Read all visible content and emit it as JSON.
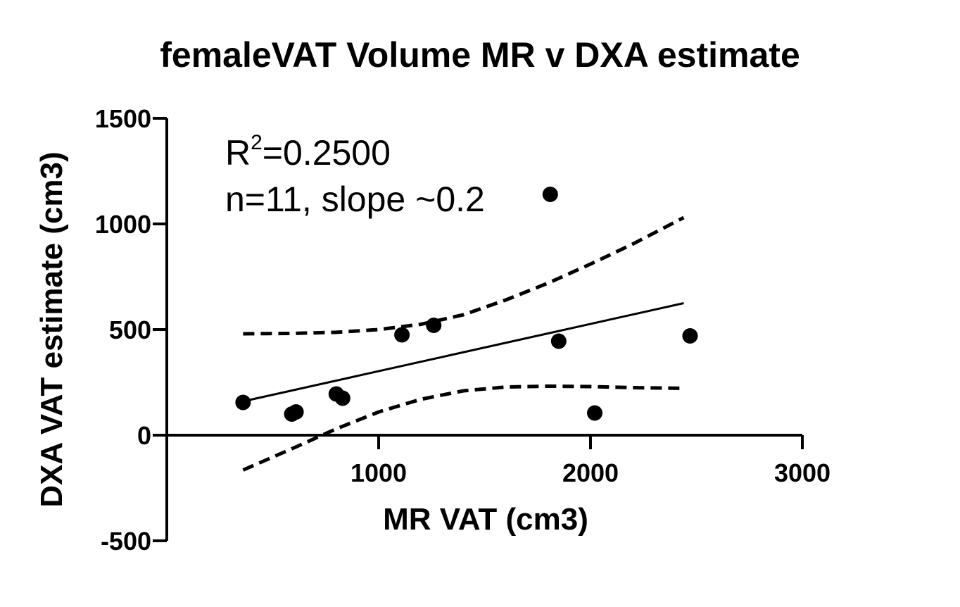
{
  "chart_data": {
    "type": "scatter",
    "title": "femaleVAT Volume MR v DXA estimate",
    "xlabel": "MR VAT (cm3)",
    "ylabel": "DXA VAT estimate (cm3)",
    "xlim": [
      0,
      3000
    ],
    "ylim": [
      -500,
      1500
    ],
    "x_ticks": [
      1000,
      2000,
      3000
    ],
    "x_tick_labels": [
      "1000",
      "2000",
      "3000"
    ],
    "y_ticks": [
      -500,
      0,
      500,
      1000,
      1500
    ],
    "y_tick_labels": [
      "-500",
      "0",
      "500",
      "1000",
      "1500"
    ],
    "grid": false,
    "annotation": {
      "r_squared_prefix": "R",
      "r_squared_exponent": "2",
      "r_squared_value": "=0.2500",
      "stats": "n=11, slope ~0.2"
    },
    "points": {
      "x": [
        360,
        590,
        610,
        800,
        830,
        1110,
        1260,
        1810,
        1850,
        2020,
        2470
      ],
      "y": [
        155,
        100,
        110,
        195,
        175,
        475,
        520,
        1140,
        445,
        105,
        470
      ]
    },
    "regression_line": {
      "x": [
        360,
        2440
      ],
      "y": [
        160,
        625
      ]
    },
    "confidence_band_upper": {
      "x": [
        360,
        600,
        800,
        1000,
        1200,
        1400,
        1600,
        1800,
        2000,
        2200,
        2440
      ],
      "y": [
        480,
        482,
        487,
        500,
        525,
        570,
        640,
        720,
        810,
        905,
        1030
      ]
    },
    "confidence_band_lower": {
      "x": [
        360,
        600,
        800,
        1000,
        1200,
        1400,
        1600,
        1800,
        2000,
        2200,
        2440
      ],
      "y": [
        -165,
        -60,
        30,
        110,
        170,
        210,
        228,
        232,
        230,
        225,
        222
      ]
    }
  }
}
